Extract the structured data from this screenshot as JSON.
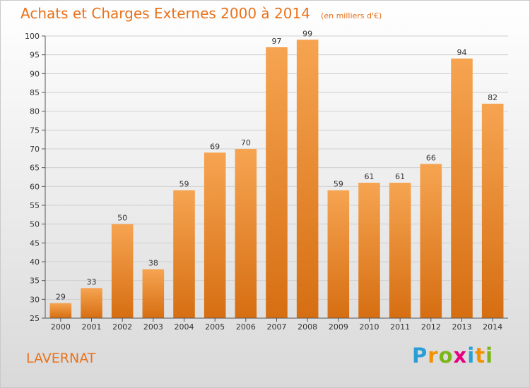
{
  "chart_data": {
    "type": "bar",
    "title": "Achats et Charges Externes 2000 à 2014",
    "unit": "(en milliers d'€)",
    "categories": [
      "2000",
      "2001",
      "2002",
      "2003",
      "2004",
      "2005",
      "2006",
      "2007",
      "2008",
      "2009",
      "2010",
      "2011",
      "2012",
      "2013",
      "2014"
    ],
    "values": [
      29,
      33,
      50,
      38,
      59,
      69,
      70,
      97,
      99,
      59,
      61,
      61,
      66,
      94,
      82
    ],
    "ylim": [
      25,
      100
    ],
    "yticks": [
      25,
      30,
      35,
      40,
      45,
      50,
      55,
      60,
      65,
      70,
      75,
      80,
      85,
      90,
      95,
      100
    ],
    "grid": true,
    "legend": "none",
    "xlabel": "",
    "ylabel": ""
  },
  "place": "LAVERNAT",
  "logo": {
    "text": "Proxiti",
    "letters": [
      "P",
      "r",
      "o",
      "x",
      "i",
      "t",
      "i"
    ],
    "letter_colors": [
      "#2a9fd6",
      "#f39200",
      "#7cb518",
      "#e6007e",
      "#2a9fd6",
      "#f39200",
      "#7cb518"
    ]
  },
  "colors": {
    "bar_light": "#f6a451",
    "bar_dark": "#d66e12",
    "accent": "#e8721c",
    "grid": "#cfcfcf"
  }
}
